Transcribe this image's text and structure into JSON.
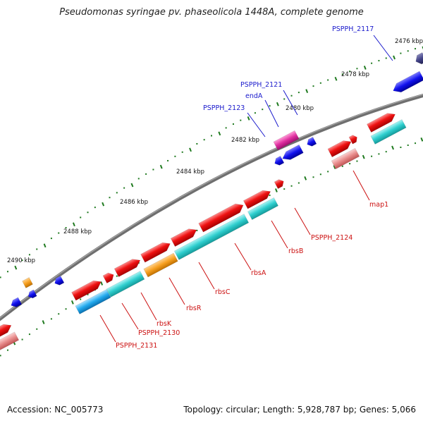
{
  "title": "Pseudomonas syringae pv. phaseolicola 1448A, complete genome",
  "accession": "Accession: NC_005773",
  "summary": "Topology: circular; Length: 5,928,787 bp; Genes: 5,066",
  "scale_labels": [
    "2476 kbp",
    "2478 kbp",
    "2480 kbp",
    "2482 kbp",
    "2484 kbp",
    "2486 kbp",
    "2488 kbp",
    "2490 kbp"
  ],
  "upper_labels": [
    "PSPPH_2117",
    "PSPPH_2121",
    "endA",
    "PSPPH_2123"
  ],
  "lower_labels": [
    "map1",
    "PSPPH_2124",
    "rbsB",
    "rbsA",
    "rbsC",
    "rbsR",
    "rbsK",
    "PSPPH_2130",
    "PSPPH_2131"
  ],
  "colors": {
    "backbone": "#7a7a7a",
    "gene_red": "#ee1111",
    "gene_pink": "#e88a8a",
    "cds_cyan": "#2ecece",
    "cds_orange": "#f7a020",
    "cds_sky": "#22aaee",
    "gene_blue": "#1111ee",
    "gene_magenta": "#e030a0",
    "gene_darkblue": "#444488",
    "tick_green": "#1f7a1f",
    "label_blue": "#1a1acc",
    "label_red": "#cc1111"
  }
}
